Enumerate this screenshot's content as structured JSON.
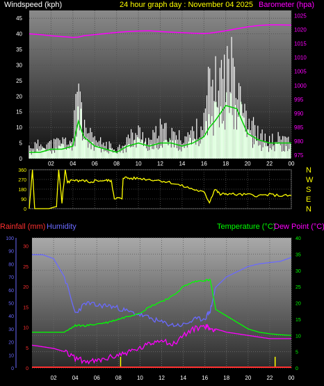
{
  "header": {
    "windspeed_label": "Windspeed (kph)",
    "title": "24 hour graph day : November 04 2025",
    "barometer_label": "Barometer (hpa)"
  },
  "bottom_header": {
    "rainfall_label": "Rainfall (mm)",
    "humidity_label": "Humidity",
    "temperature_label": "Temperature (°C)",
    "dewpoint_label": "Dew Point (°C)"
  },
  "x_ticks": [
    "02",
    "04",
    "06",
    "08",
    "10",
    "12",
    "14",
    "16",
    "18",
    "20",
    "22",
    "00"
  ],
  "colors": {
    "wind_gust": "#ffffff",
    "wind_avg": "#c8ffc8",
    "wind_trend": "#00cc00",
    "barometer": "#ff00ff",
    "direction": "#ffff00",
    "rainfall": "#ff3030",
    "humidity": "#6a6aff",
    "temperature": "#00ff00",
    "dewpoint": "#ff00ff",
    "rain_ticks": "#ffff00"
  },
  "chart_data": [
    {
      "type": "line",
      "id": "wind_baro",
      "x_hours": [
        0,
        1,
        2,
        3,
        4,
        4.5,
        5,
        6,
        7,
        8,
        9,
        10,
        11,
        12,
        13,
        14,
        15,
        16,
        16.5,
        17,
        18,
        19,
        20,
        21,
        22,
        23,
        24
      ],
      "series": [
        {
          "name": "Windspeed (kph)",
          "kind": "gust",
          "values": [
            4,
            5,
            5,
            6,
            6,
            30,
            10,
            6,
            5,
            3,
            7,
            9,
            6,
            10,
            8,
            7,
            9,
            12,
            26,
            25,
            30,
            32,
            14,
            8,
            6,
            7,
            7
          ]
        },
        {
          "name": "",
          "kind": "avg",
          "values": [
            2,
            3,
            3,
            4,
            4,
            17,
            7,
            4,
            3,
            2,
            4,
            6,
            4,
            6,
            5,
            4,
            6,
            8,
            14,
            14,
            19,
            18,
            8,
            5,
            4,
            4,
            4
          ]
        },
        {
          "name": "",
          "kind": "trend",
          "values": [
            2,
            2,
            3,
            3,
            4,
            12,
            7,
            4,
            3,
            2,
            4,
            5,
            4,
            5,
            5,
            4,
            5,
            7,
            10,
            12,
            17,
            16,
            8,
            6,
            5,
            5,
            5
          ]
        },
        {
          "name": "Barometer (hpa)",
          "kind": "pressure",
          "values": [
            1018.5,
            1018.2,
            1017.8,
            1017.5,
            1017.2,
            1017.3,
            1017.8,
            1018.2,
            1018.6,
            1019.0,
            1019.3,
            1019.5,
            1019.6,
            1019.3,
            1019.1,
            1018.9,
            1018.7,
            1018.6,
            1018.7,
            1019.0,
            1019.6,
            1020.3,
            1021.0,
            1021.5,
            1021.7,
            1021.7,
            1021.6
          ]
        }
      ],
      "y_left": {
        "ticks": [
          0,
          5,
          10,
          15,
          20,
          25,
          30,
          35,
          40,
          45
        ],
        "ylim": [
          0,
          47.5
        ]
      },
      "y_right": {
        "ticks": [
          975,
          980,
          985,
          990,
          995,
          1000,
          1005,
          1010,
          1015,
          1020,
          1025
        ],
        "ylim": [
          973.75,
          1026.875
        ]
      }
    },
    {
      "type": "line",
      "id": "direction",
      "x_hours": [
        0,
        0.3,
        0.5,
        1.8,
        2.5,
        2.7,
        3.0,
        3.3,
        3.5,
        4.0,
        4.5,
        5.2,
        5.5,
        6,
        7,
        7.5,
        7.8,
        8.5,
        8.6,
        9.2,
        10,
        11,
        12,
        13,
        14,
        15,
        16,
        16.5,
        17,
        17.5,
        18,
        19,
        20,
        21,
        22,
        23,
        24
      ],
      "series": [
        {
          "name": "",
          "values": [
            0,
            360,
            0,
            0,
            20,
            360,
            60,
            360,
            240,
            270,
            250,
            260,
            230,
            260,
            260,
            260,
            100,
            90,
            290,
            280,
            280,
            270,
            260,
            240,
            210,
            180,
            150,
            60,
            180,
            130,
            140,
            130,
            130,
            120,
            130,
            120,
            120
          ]
        }
      ],
      "y_ticks": [
        0,
        90,
        180,
        270,
        360
      ],
      "ylim": [
        0,
        360
      ],
      "compass": [
        "N",
        "W",
        "S",
        "E",
        "N"
      ]
    },
    {
      "type": "line",
      "id": "temp_humidity",
      "x_hours": [
        0,
        1,
        2,
        3,
        4,
        5,
        6,
        7,
        8,
        9,
        10,
        11,
        12,
        13,
        14,
        15,
        16,
        16.5,
        17,
        18,
        19,
        20,
        21,
        22,
        23,
        24
      ],
      "series": [
        {
          "name": "Humidity",
          "axis": "humidity",
          "values": [
            87,
            87,
            84,
            70,
            42,
            50,
            48,
            48,
            46,
            43,
            41,
            38,
            35,
            33,
            33,
            37,
            38,
            44,
            62,
            70,
            74,
            78,
            80,
            81,
            82,
            85
          ]
        },
        {
          "name": "Temperature (°C)",
          "axis": "temp",
          "values": [
            11,
            11,
            11,
            11,
            13,
            13,
            13.5,
            14,
            15,
            16,
            17,
            19,
            20.5,
            22,
            25,
            26.5,
            27,
            27,
            18,
            16,
            14,
            12,
            11,
            10.5,
            10.2,
            10
          ]
        },
        {
          "name": "Dew Point (°C)",
          "axis": "temp",
          "values": [
            7,
            6.5,
            6,
            5,
            3,
            2,
            2,
            3,
            4,
            5,
            6,
            7.5,
            9,
            7,
            10,
            12,
            13,
            12,
            12,
            11,
            10.5,
            10,
            9.5,
            9,
            9,
            9
          ]
        },
        {
          "name": "Rainfall (mm)",
          "axis": "rain",
          "values": [
            0,
            0,
            0,
            0,
            0,
            0,
            0,
            0,
            0,
            0,
            0,
            0,
            0,
            0,
            0,
            0,
            0,
            0,
            0,
            0,
            0,
            0,
            0,
            0,
            0,
            0
          ]
        }
      ],
      "rain_tick_hours": [
        8.2,
        22.5
      ],
      "y_humidity": {
        "ticks": [
          0,
          10,
          20,
          30,
          40,
          50,
          60,
          70,
          80,
          90,
          100
        ],
        "ylim": [
          0,
          100
        ]
      },
      "y_rain": {
        "ticks": [
          0,
          5,
          10,
          15,
          20,
          25,
          30
        ],
        "ylim": [
          0,
          32
        ]
      },
      "y_temp": {
        "ticks": [
          0,
          5,
          10,
          15,
          20,
          25,
          30,
          35,
          40
        ],
        "ylim": [
          0,
          40
        ]
      }
    }
  ]
}
